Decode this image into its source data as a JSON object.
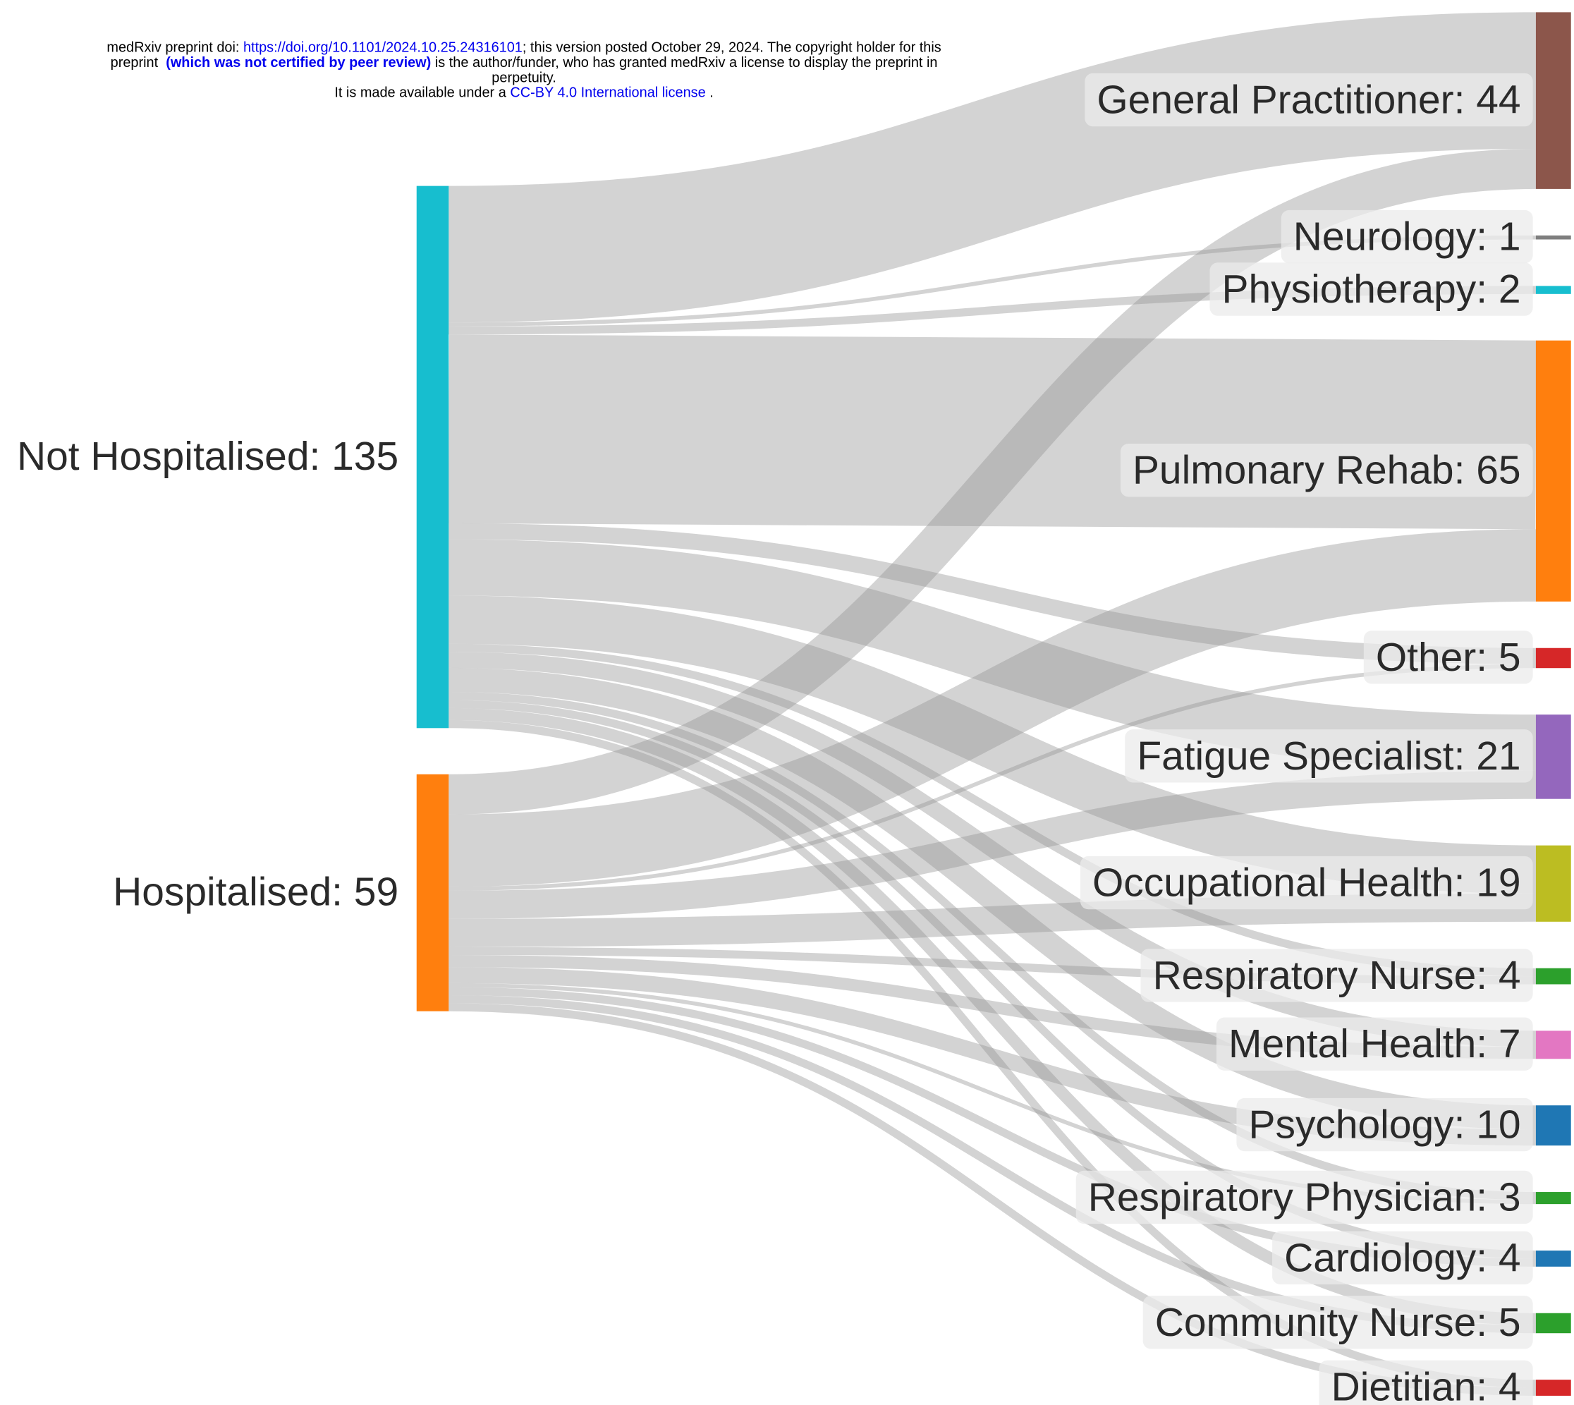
{
  "header": {
    "line1": [
      "medRxiv preprint doi: ",
      "https://doi.org/10.1101/2024.10.25.24316101",
      "; this version posted October 29, 2024. The copyright holder for this"
    ],
    "line2": [
      "preprint  ",
      "(which was not certified by peer review)",
      " is the author/funder, who has granted medRxiv a license to display the preprint in"
    ],
    "line3": "perpetuity.",
    "line4": [
      "It is made available under a ",
      "CC-BY 4.0 International license",
      " ."
    ]
  },
  "chart_data": {
    "type": "sankey",
    "link_color": "rgba(150,150,150,0.42)",
    "nodes": [
      {
        "label": "Not Hospitalised: 135",
        "value": 135,
        "color": "#17becf"
      },
      {
        "label": "Hospitalised: 59",
        "value": 59,
        "color": "#ff7f0e"
      },
      {
        "label": "General Practitioner: 44",
        "value": 44,
        "color": "#8c564b"
      },
      {
        "label": "Neurology: 1",
        "value": 1,
        "color": "#7f7f7f"
      },
      {
        "label": "Physiotherapy: 2",
        "value": 2,
        "color": "#17becf"
      },
      {
        "label": "Pulmonary Rehab: 65",
        "value": 65,
        "color": "#ff7f0e"
      },
      {
        "label": "Other: 5",
        "value": 5,
        "color": "#d62728"
      },
      {
        "label": "Fatigue Specialist: 21",
        "value": 21,
        "color": "#9467bd"
      },
      {
        "label": "Occupational Health: 19",
        "value": 19,
        "color": "#bcbd22"
      },
      {
        "label": "Respiratory Nurse: 4",
        "value": 4,
        "color": "#2ca02c"
      },
      {
        "label": "Mental Health: 7",
        "value": 7,
        "color": "#e377c2"
      },
      {
        "label": "Psychology: 10",
        "value": 10,
        "color": "#1f77b4"
      },
      {
        "label": "Respiratory Physician: 3",
        "value": 3,
        "color": "#2ca02c"
      },
      {
        "label": "Cardiology: 4",
        "value": 4,
        "color": "#1f77b4"
      },
      {
        "label": "Community Nurse: 5",
        "value": 5,
        "color": "#2ca02c"
      },
      {
        "label": "Dietitian: 4",
        "value": 4,
        "color": "#d62728"
      }
    ],
    "links": [
      {
        "source": 0,
        "target": 2,
        "value": 34
      },
      {
        "source": 1,
        "target": 2,
        "value": 10
      },
      {
        "source": 0,
        "target": 3,
        "value": 1
      },
      {
        "source": 0,
        "target": 4,
        "value": 2
      },
      {
        "source": 0,
        "target": 5,
        "value": 47
      },
      {
        "source": 1,
        "target": 5,
        "value": 18
      },
      {
        "source": 0,
        "target": 6,
        "value": 4
      },
      {
        "source": 1,
        "target": 6,
        "value": 1
      },
      {
        "source": 0,
        "target": 7,
        "value": 14
      },
      {
        "source": 1,
        "target": 7,
        "value": 7
      },
      {
        "source": 0,
        "target": 8,
        "value": 12
      },
      {
        "source": 1,
        "target": 8,
        "value": 7
      },
      {
        "source": 0,
        "target": 9,
        "value": 2
      },
      {
        "source": 1,
        "target": 9,
        "value": 2
      },
      {
        "source": 0,
        "target": 10,
        "value": 4
      },
      {
        "source": 1,
        "target": 10,
        "value": 3
      },
      {
        "source": 0,
        "target": 11,
        "value": 6
      },
      {
        "source": 1,
        "target": 11,
        "value": 4
      },
      {
        "source": 0,
        "target": 12,
        "value": 2
      },
      {
        "source": 1,
        "target": 12,
        "value": 1
      },
      {
        "source": 0,
        "target": 13,
        "value": 2
      },
      {
        "source": 1,
        "target": 13,
        "value": 2
      },
      {
        "source": 0,
        "target": 14,
        "value": 3
      },
      {
        "source": 1,
        "target": 14,
        "value": 2
      },
      {
        "source": 0,
        "target": 15,
        "value": 2
      },
      {
        "source": 1,
        "target": 15,
        "value": 2
      }
    ]
  }
}
